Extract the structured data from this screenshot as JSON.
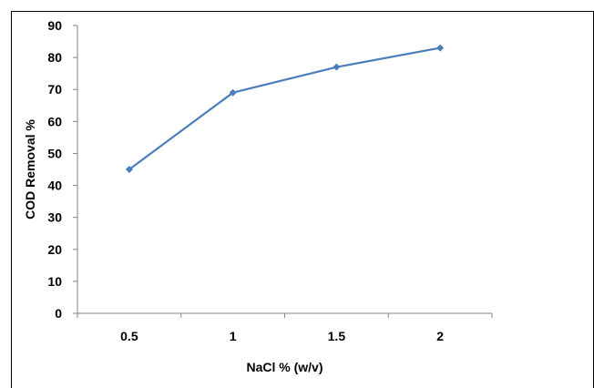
{
  "chart_data": {
    "type": "line",
    "title": "",
    "xlabel": "NaCl % (w/v)",
    "ylabel": "COD Removal %",
    "categories": [
      "0.5",
      "1",
      "1.5",
      "2"
    ],
    "series": [
      {
        "values": [
          45,
          69,
          77,
          83
        ],
        "color": "#4a7ebb",
        "marker": "diamond"
      }
    ],
    "ylim": [
      0,
      90
    ],
    "yticks": [
      0,
      10,
      20,
      30,
      40,
      50,
      60,
      70,
      80,
      90
    ],
    "grid": false,
    "legend": "none"
  }
}
